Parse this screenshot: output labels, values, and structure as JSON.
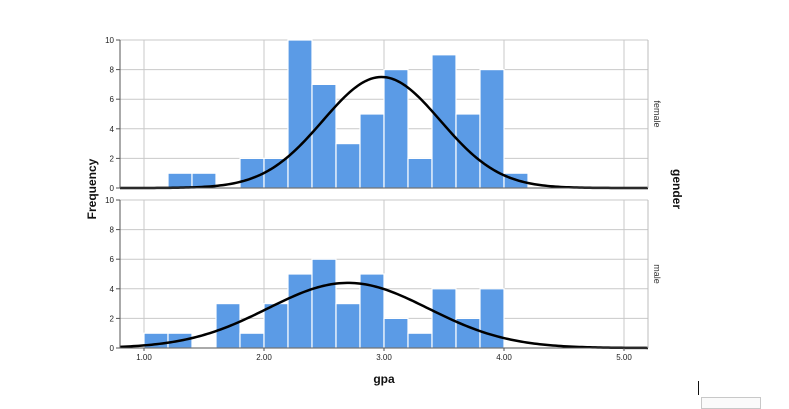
{
  "chart_data": {
    "type": "bar",
    "xlabel": "gpa",
    "ylabel": "Frequency",
    "facet_title": "gender",
    "x_ticks": [
      "1.00",
      "2.00",
      "3.00",
      "4.00",
      "5.00"
    ],
    "x_tick_values": [
      1,
      2,
      3,
      4,
      5
    ],
    "xlim": [
      0.8,
      5.2
    ],
    "bin_width": 0.2,
    "grid": true,
    "bar_color": "#5b9be6",
    "curve_color": "#000000",
    "panels": [
      {
        "name": "female",
        "y_ticks": [
          "0",
          "2",
          "4",
          "6",
          "8",
          "10"
        ],
        "ylim": [
          0,
          10
        ],
        "bin_starts": [
          1.2,
          1.4,
          1.6,
          1.8,
          2.0,
          2.2,
          2.4,
          2.6,
          2.8,
          3.0,
          3.2,
          3.4,
          3.6,
          3.8,
          4.0
        ],
        "values": [
          1,
          1,
          0,
          2,
          2,
          10,
          7,
          3,
          5,
          8,
          2,
          9,
          5,
          8,
          1
        ],
        "normal_curve": {
          "mean": 2.98,
          "peak": 7.5,
          "sd": 0.49
        }
      },
      {
        "name": "male",
        "y_ticks": [
          "0",
          "2",
          "4",
          "6",
          "8",
          "10"
        ],
        "ylim": [
          0,
          10
        ],
        "bin_starts": [
          1.0,
          1.2,
          1.4,
          1.6,
          1.8,
          2.0,
          2.2,
          2.4,
          2.6,
          2.8,
          3.0,
          3.2,
          3.4,
          3.6,
          3.8
        ],
        "values": [
          1,
          1,
          0,
          3,
          1,
          3,
          5,
          6,
          3,
          5,
          2,
          1,
          4,
          2,
          4
        ],
        "normal_curve": {
          "mean": 2.7,
          "peak": 4.4,
          "sd": 0.67
        }
      }
    ]
  }
}
